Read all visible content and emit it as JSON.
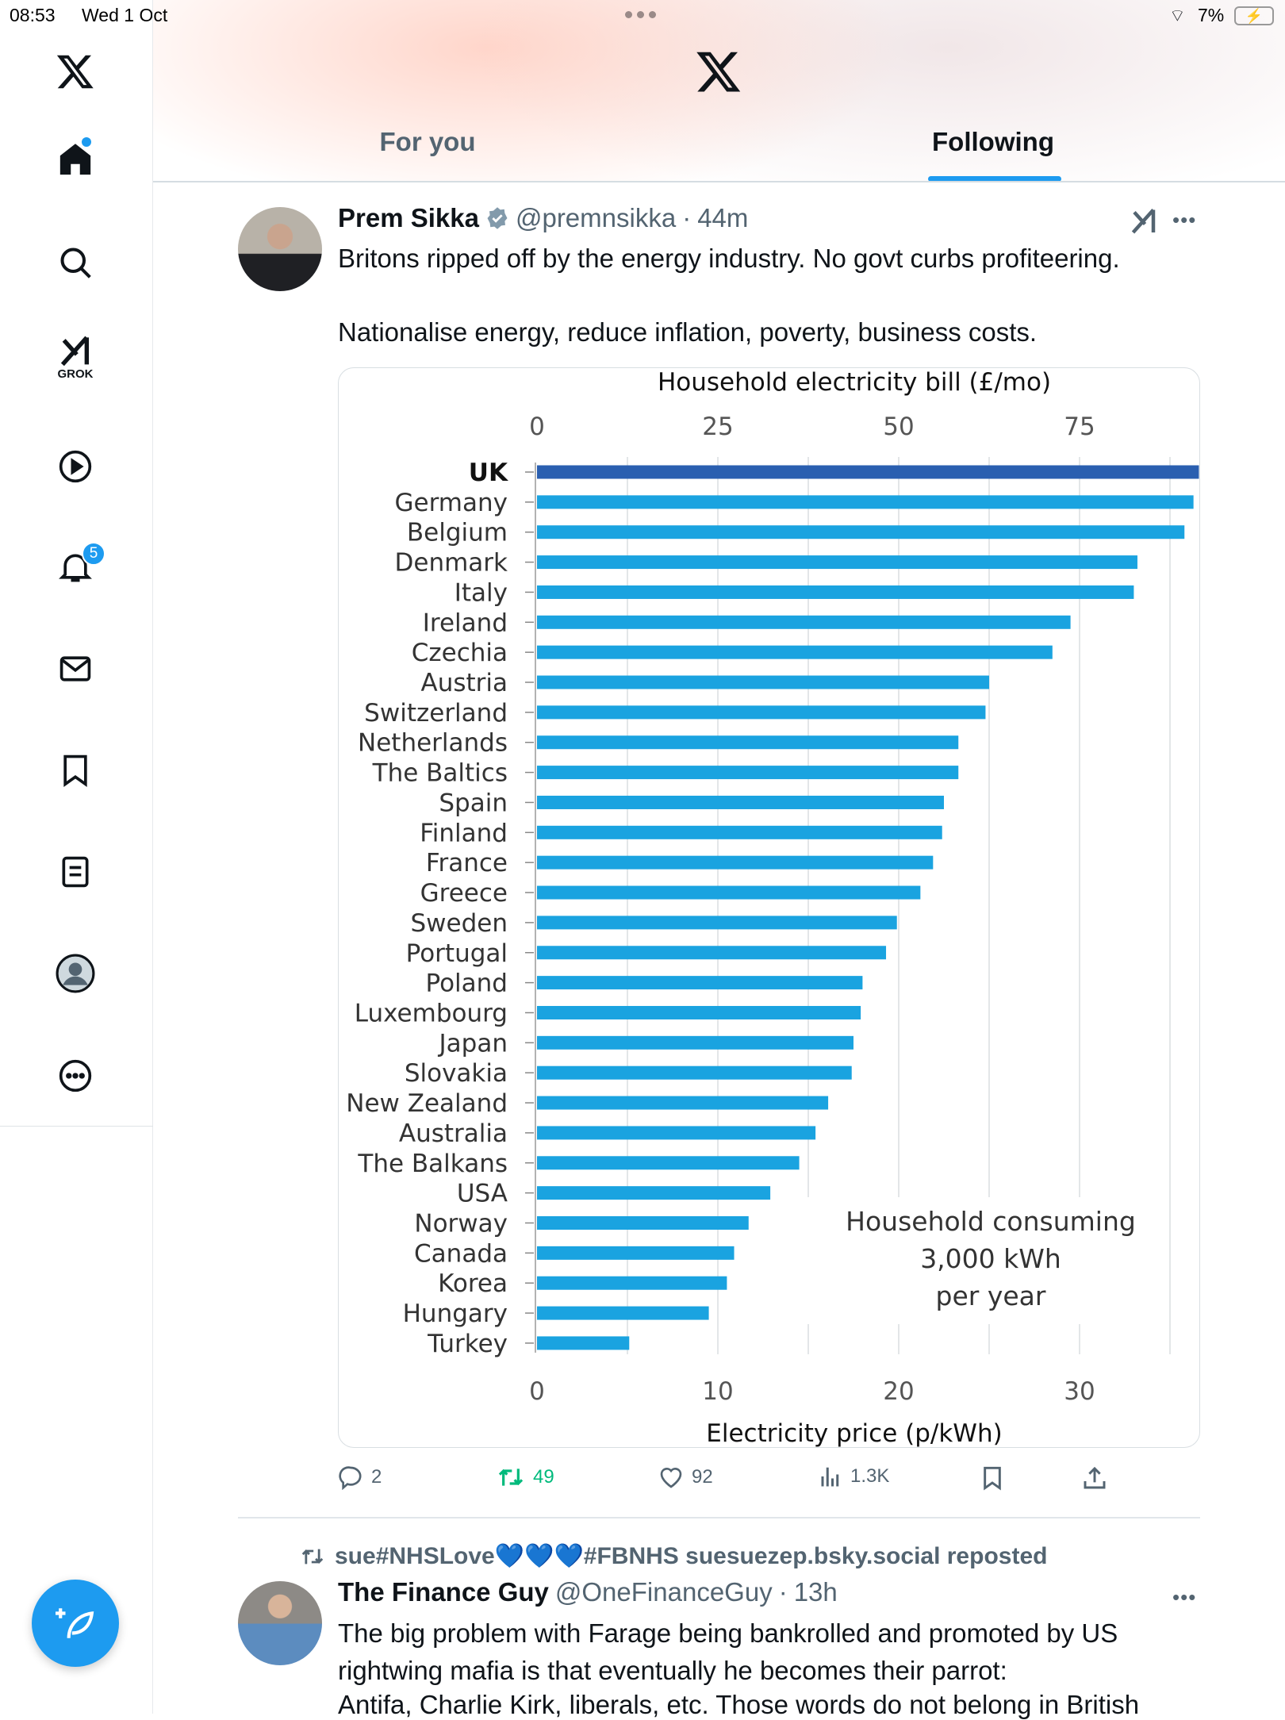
{
  "status_bar": {
    "time": "08:53",
    "date": "Wed 1 Oct",
    "battery": "7%"
  },
  "sidebar": {
    "notifications_badge": "5",
    "grok_label": "GROK"
  },
  "tabs": [
    {
      "label": "For you",
      "active": false
    },
    {
      "label": "Following",
      "active": true
    }
  ],
  "colors": {
    "accent": "#1d9bf0",
    "bar": "#1aa3e0",
    "bar_highlight": "#2a5fb0",
    "retweet_green": "#00ba7c"
  },
  "post1": {
    "name": "Prem Sikka",
    "handle": "@premnsikka",
    "time": "44m",
    "text_line1": "Britons ripped off by the energy industry. No govt curbs profiteering.",
    "text_line2": "Nationalise energy, reduce inflation, poverty, business costs.",
    "actions": {
      "replies": "2",
      "reposts": "49",
      "likes": "92",
      "views": "1.3K"
    }
  },
  "chart_data": {
    "type": "bar",
    "orientation": "horizontal",
    "title": "Household electricity bill (£/mo)",
    "top_ticks": [
      "0",
      "25",
      "50",
      "75"
    ],
    "xlabel": "Electricity price (p/kWh)",
    "bottom_ticks": [
      "0",
      "10",
      "20",
      "30"
    ],
    "xlim": [
      0,
      37
    ],
    "annotation": [
      "Household consuming",
      "3,000 kWh",
      "per year"
    ],
    "grid": true,
    "categories": [
      "UK",
      "Germany",
      "Belgium",
      "Denmark",
      "Italy",
      "Ireland",
      "Czechia",
      "Austria",
      "Switzerland",
      "Netherlands",
      "The Baltics",
      "Spain",
      "Finland",
      "France",
      "Greece",
      "Sweden",
      "Portugal",
      "Poland",
      "Luxembourg",
      "Japan",
      "Slovakia",
      "New Zealand",
      "Australia",
      "The Balkans",
      "USA",
      "Norway",
      "Canada",
      "Korea",
      "Hungary",
      "Turkey"
    ],
    "values": [
      36.6,
      36.3,
      35.8,
      33.2,
      33.0,
      29.5,
      28.5,
      25.0,
      24.8,
      23.3,
      23.3,
      22.5,
      22.4,
      21.9,
      21.2,
      19.9,
      19.3,
      18.0,
      17.9,
      17.5,
      17.4,
      16.1,
      15.4,
      14.5,
      12.9,
      11.7,
      10.9,
      10.5,
      9.5,
      5.1
    ]
  },
  "repost": {
    "text": "sue#NHSLove💙💙💙#FBNHS suesuezep.bsky.social reposted"
  },
  "post2": {
    "name": "The Finance Guy",
    "handle": "@OneFinanceGuy",
    "time": "13h",
    "lines": [
      "The big problem with Farage being bankrolled and promoted by US",
      "rightwing mafia is that eventually he becomes their parrot:",
      "Antifa, Charlie Kirk, liberals, etc. Those words do not belong in British"
    ]
  }
}
